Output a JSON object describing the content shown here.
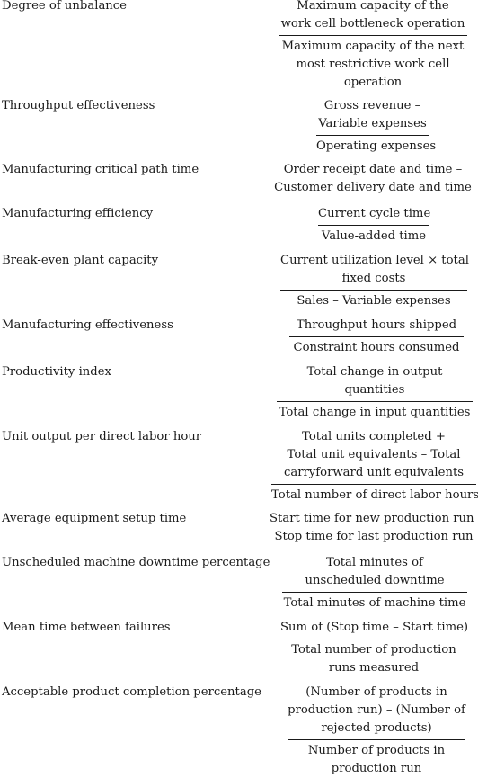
{
  "rows": [
    {
      "label": "Degree of unbalance",
      "numerator": [
        "Maximum capacity of the",
        "work cell bottleneck operation"
      ],
      "denominator": [
        "Maximum capacity of the next",
        "most restrictive work cell",
        "operation"
      ]
    },
    {
      "label": "Throughput effectiveness",
      "numerator": [
        "Gross revenue –",
        "Variable expenses"
      ],
      "denominator": [
        "Operating expenses"
      ]
    },
    {
      "label": "Manufacturing critical path time",
      "expression": [
        "Order receipt date and time –",
        "Customer delivery date and time"
      ]
    },
    {
      "label": "Manufacturing efficiency",
      "numerator": [
        "Current cycle time"
      ],
      "denominator": [
        "Value-added time"
      ]
    },
    {
      "label": "Break-even plant capacity",
      "numerator": [
        "Current utilization level × total",
        "fixed costs"
      ],
      "denominator": [
        "Sales – Variable expenses"
      ]
    },
    {
      "label": "Manufacturing effectiveness",
      "numerator": [
        "Throughput hours shipped"
      ],
      "denominator": [
        "Constraint hours consumed"
      ]
    },
    {
      "label": "Productivity index",
      "numerator": [
        "Total change in output",
        "quantities"
      ],
      "denominator": [
        "Total change in input quantities"
      ]
    },
    {
      "label": "Unit output per direct labor hour",
      "numerator": [
        "Total units completed +",
        "Total unit equivalents – Total",
        "carryforward unit equivalents"
      ],
      "denominator": [
        "Total number of direct labor hours"
      ]
    },
    {
      "label": "Average equipment setup time",
      "expression": [
        "Start time for new production run –",
        "Stop time for last production run"
      ]
    },
    {
      "label": "Unscheduled machine downtime percentage",
      "numerator": [
        "Total minutes of",
        "unscheduled downtime"
      ],
      "denominator": [
        "Total minutes of machine time"
      ]
    },
    {
      "label": "Mean time between failures",
      "numerator": [
        "Sum of (Stop time – Start time)"
      ],
      "denominator": [
        "Total number of production",
        "runs measured"
      ]
    },
    {
      "label": "Acceptable product completion percentage",
      "numerator": [
        "(Number of products in",
        "production run) – (Number of",
        "rejected products)"
      ],
      "denominator": [
        "Number of products in",
        "production run"
      ]
    }
  ]
}
